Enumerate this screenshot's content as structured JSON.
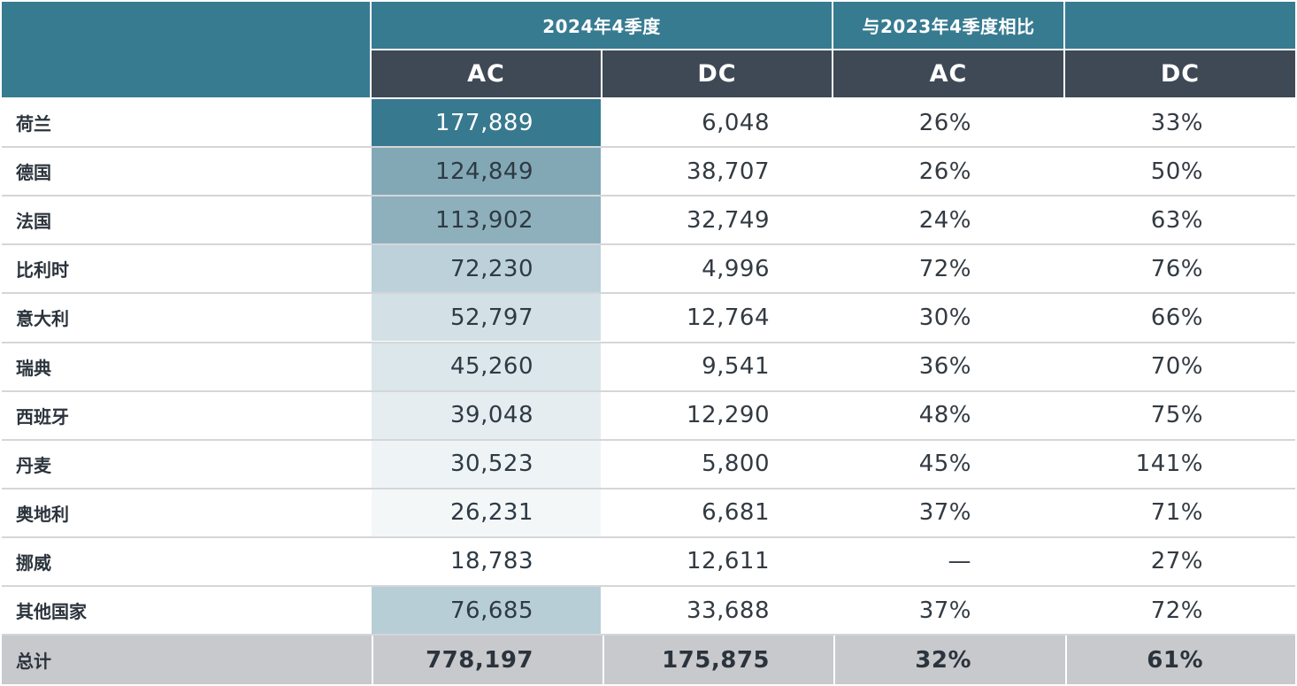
{
  "header": {
    "group_q4_2024": "2024年4季度",
    "group_vs_q4_2023": "与2023年4季度相比",
    "group_empty": "",
    "cols": [
      "AC",
      "DC",
      "AC",
      "DC"
    ]
  },
  "rows": [
    {
      "label": "荷兰",
      "q4_ac": "177,889",
      "q4_dc": "6,048",
      "cmp_ac": "26%",
      "cmp_dc": "33%",
      "ac_shade": "#37798f",
      "ac_text": "#ffffff"
    },
    {
      "label": "德国",
      "q4_ac": "124,849",
      "q4_dc": "38,707",
      "cmp_ac": "26%",
      "cmp_dc": "50%",
      "ac_shade": "#82a8b6",
      "ac_text": "#2e3a44"
    },
    {
      "label": "法国",
      "q4_ac": "113,902",
      "q4_dc": "32,749",
      "cmp_ac": "24%",
      "cmp_dc": "63%",
      "ac_shade": "#8eb0bd",
      "ac_text": "#2e3a44"
    },
    {
      "label": "比利时",
      "q4_ac": "72,230",
      "q4_dc": "4,996",
      "cmp_ac": "72%",
      "cmp_dc": "76%",
      "ac_shade": "#bcd1d9",
      "ac_text": "#2e3a44"
    },
    {
      "label": "意大利",
      "q4_ac": "52,797",
      "q4_dc": "12,764",
      "cmp_ac": "30%",
      "cmp_dc": "66%",
      "ac_shade": "#d3e1e6",
      "ac_text": "#2e3a44"
    },
    {
      "label": "瑞典",
      "q4_ac": "45,260",
      "q4_dc": "9,541",
      "cmp_ac": "36%",
      "cmp_dc": "70%",
      "ac_shade": "#dce7eb",
      "ac_text": "#2e3a44"
    },
    {
      "label": "西班牙",
      "q4_ac": "39,048",
      "q4_dc": "12,290",
      "cmp_ac": "48%",
      "cmp_dc": "75%",
      "ac_shade": "#e5edf0",
      "ac_text": "#2e3a44"
    },
    {
      "label": "丹麦",
      "q4_ac": "30,523",
      "q4_dc": "5,800",
      "cmp_ac": "45%",
      "cmp_dc": "141%",
      "ac_shade": "#eef3f5",
      "ac_text": "#2e3a44"
    },
    {
      "label": "奥地利",
      "q4_ac": "26,231",
      "q4_dc": "6,681",
      "cmp_ac": "37%",
      "cmp_dc": "71%",
      "ac_shade": "#f4f7f8",
      "ac_text": "#2e3a44"
    },
    {
      "label": "挪威",
      "q4_ac": "18,783",
      "q4_dc": "12,611",
      "cmp_ac": "—",
      "cmp_dc": "27%",
      "ac_shade": "#ffffff",
      "ac_text": "#2e3a44"
    },
    {
      "label": "其他国家",
      "q4_ac": "76,685",
      "q4_dc": "33,688",
      "cmp_ac": "37%",
      "cmp_dc": "72%",
      "ac_shade": "#b8ced6",
      "ac_text": "#2e3a44"
    }
  ],
  "total": {
    "label": "总计",
    "q4_ac": "778,197",
    "q4_dc": "175,875",
    "cmp_ac": "32%",
    "cmp_dc": "61%"
  },
  "colors": {
    "header_teal": "#377b91",
    "header_dark": "#3f4955",
    "total_bg": "#c8c9cd",
    "row_divider": "#d4d6d9"
  }
}
